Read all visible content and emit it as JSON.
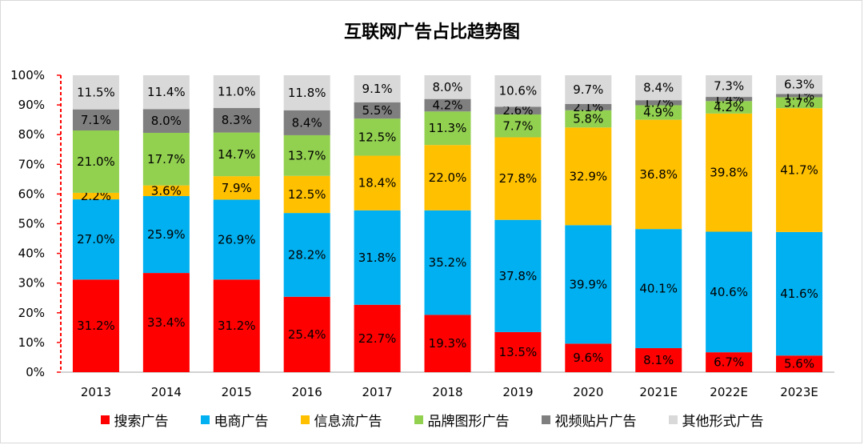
{
  "chart_data": {
    "type": "bar",
    "stacked": true,
    "normalized": true,
    "title": "互联网广告占比趋势图",
    "xlabel": "",
    "ylabel": "",
    "ylim": [
      0,
      100
    ],
    "yticks": [
      "0%",
      "10%",
      "20%",
      "30%",
      "40%",
      "50%",
      "60%",
      "70%",
      "80%",
      "90%",
      "100%"
    ],
    "categories": [
      "2013",
      "2014",
      "2015",
      "2016",
      "2017",
      "2018",
      "2019",
      "2020",
      "2021E",
      "2022E",
      "2023E"
    ],
    "legend_position": "bottom",
    "grid": false,
    "series": [
      {
        "name": "搜索广告",
        "color": "#FF0000",
        "label_color": "#000000",
        "values": [
          31.2,
          33.4,
          31.2,
          25.4,
          22.7,
          19.3,
          13.5,
          9.6,
          8.1,
          6.7,
          5.6
        ],
        "labels": [
          "31.2%",
          "33.4%",
          "31.2%",
          "25.4%",
          "22.7%",
          "19.3%",
          "13.5%",
          "9.6%",
          "8.1%",
          "6.7%",
          "5.6%"
        ]
      },
      {
        "name": "电商广告",
        "color": "#00B0F0",
        "label_color": "#000000",
        "values": [
          27.0,
          25.9,
          26.9,
          28.2,
          31.8,
          35.2,
          37.8,
          39.9,
          40.1,
          40.6,
          41.6
        ],
        "labels": [
          "27.0%",
          "25.9%",
          "26.9%",
          "28.2%",
          "31.8%",
          "35.2%",
          "37.8%",
          "39.9%",
          "40.1%",
          "40.6%",
          "41.6%"
        ]
      },
      {
        "name": "信息流广告",
        "color": "#FFC000",
        "label_color": "#000000",
        "values": [
          2.2,
          3.6,
          7.9,
          12.5,
          18.4,
          22.0,
          27.8,
          32.9,
          36.8,
          39.8,
          41.7
        ],
        "labels": [
          "2.2%",
          "3.6%",
          "7.9%",
          "12.5%",
          "18.4%",
          "22.0%",
          "27.8%",
          "32.9%",
          "36.8%",
          "39.8%",
          "41.7%"
        ]
      },
      {
        "name": "品牌图形广告",
        "color": "#92D050",
        "label_color": "#000000",
        "values": [
          21.0,
          17.7,
          14.7,
          13.7,
          12.5,
          11.3,
          7.7,
          5.8,
          4.9,
          4.2,
          3.7
        ],
        "labels": [
          "21.0%",
          "17.7%",
          "14.7%",
          "13.7%",
          "12.5%",
          "11.3%",
          "7.7%",
          "5.8%",
          "4.9%",
          "4.2%",
          "3.7%"
        ]
      },
      {
        "name": "视频贴片广告",
        "color": "#7F7F7F",
        "label_color": "#000000",
        "values": [
          7.1,
          8.0,
          8.3,
          8.4,
          5.5,
          4.2,
          2.6,
          2.1,
          1.7,
          1.4,
          1.1
        ],
        "labels": [
          "7.1%",
          "8.0%",
          "8.3%",
          "8.4%",
          "5.5%",
          "4.2%",
          "2.6%",
          "2.1%",
          "1.7%",
          "1.4%",
          "1.1%"
        ]
      },
      {
        "name": "其他形式广告",
        "color": "#D9D9D9",
        "label_color": "#000000",
        "values": [
          11.5,
          11.4,
          11.0,
          11.8,
          9.1,
          8.0,
          10.6,
          9.7,
          8.4,
          7.3,
          6.3
        ],
        "labels": [
          "11.5%",
          "11.4%",
          "11.0%",
          "11.8%",
          "9.1%",
          "8.0%",
          "10.6%",
          "9.7%",
          "8.4%",
          "7.3%",
          "6.3%"
        ]
      }
    ]
  }
}
